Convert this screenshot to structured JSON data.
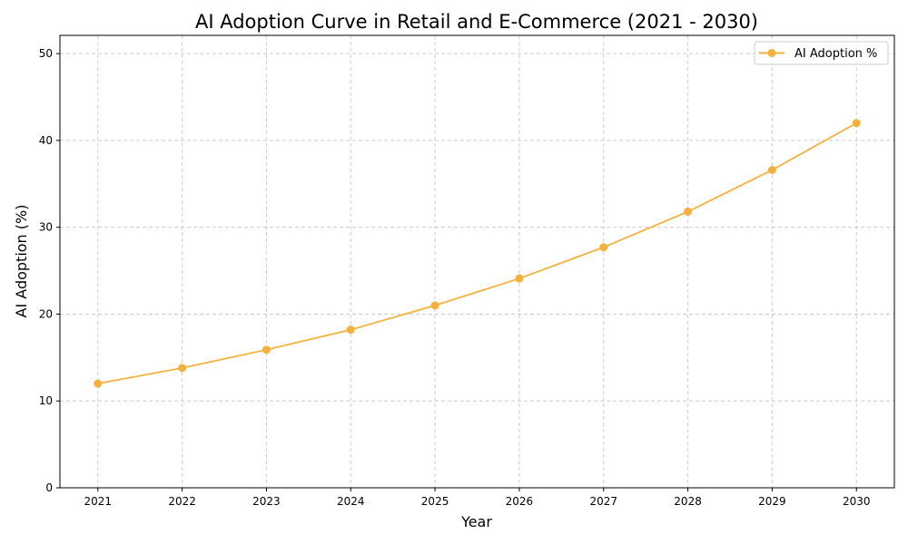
{
  "chart_data": {
    "type": "line",
    "title": "AI Adoption Curve in Retail and E-Commerce (2021 - 2030)",
    "xlabel": "Year",
    "ylabel": "AI Adoption (%)",
    "x": [
      2021,
      2022,
      2023,
      2024,
      2025,
      2026,
      2027,
      2028,
      2029,
      2030
    ],
    "series": [
      {
        "name": "AI Adoption %",
        "values": [
          12.0,
          13.8,
          15.9,
          18.2,
          21.0,
          24.1,
          27.7,
          31.8,
          36.6,
          42.0
        ],
        "color": "#f4b13c",
        "marker": "circle"
      }
    ],
    "xticks": [
      "2021",
      "2022",
      "2023",
      "2024",
      "2025",
      "2026",
      "2027",
      "2028",
      "2029",
      "2030"
    ],
    "yticks": [
      "0",
      "10",
      "20",
      "30",
      "40",
      "50"
    ],
    "xlim": [
      2020.55,
      2030.45
    ],
    "ylim": [
      0,
      52.1
    ],
    "grid": true,
    "grid_style": "dashed",
    "legend_position": "top-right"
  }
}
